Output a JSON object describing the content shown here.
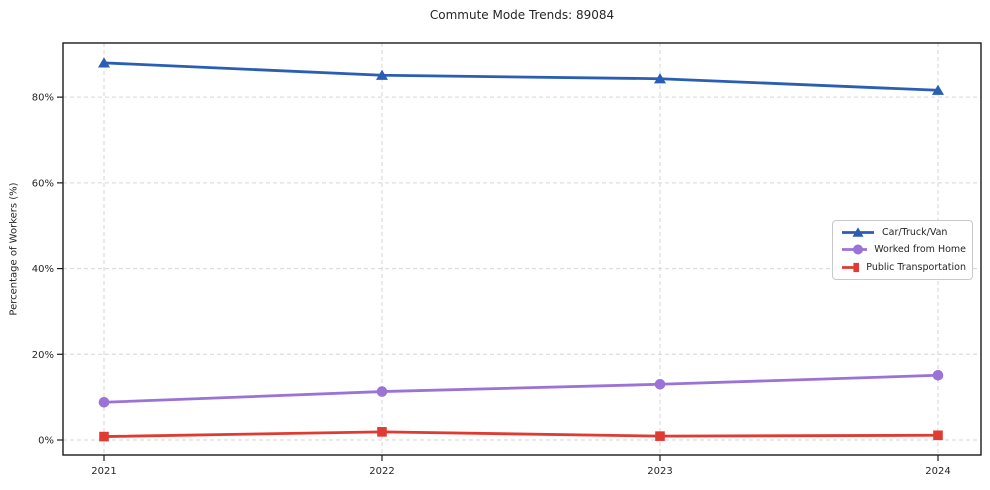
{
  "title": "Commute Mode Trends: 89084",
  "y_axis": {
    "label": "Percentage of Workers (%)",
    "tick_labels": [
      "0%",
      "20%",
      "40%",
      "60%",
      "80%"
    ],
    "tick_values": [
      0,
      20,
      40,
      60,
      80
    ]
  },
  "x_axis": {
    "tick_labels": [
      "2021",
      "2022",
      "2023",
      "2024"
    ]
  },
  "legend": {
    "entries": [
      "Car/Truck/Van",
      "Worked from Home",
      "Public Transportation"
    ]
  },
  "colors": {
    "car_truck_van": "#2a5db4",
    "worked_from_home": "#9b72d6",
    "public_transportation": "#df3b33",
    "gridline": "#d6d6d6",
    "axis_border": "#1b1b1b"
  },
  "chart_data": {
    "type": "line",
    "title": "Commute Mode Trends: 89084",
    "xlabel": "",
    "ylabel": "Percentage of Workers (%)",
    "categories": [
      "2021",
      "2022",
      "2023",
      "2024"
    ],
    "series": [
      {
        "name": "Car/Truck/Van",
        "marker": "triangle",
        "color": "#2a5db4",
        "values": [
          88.0,
          85.1,
          84.3,
          81.6
        ]
      },
      {
        "name": "Worked from Home",
        "marker": "circle",
        "color": "#9b72d6",
        "values": [
          8.8,
          11.3,
          13.0,
          15.1
        ]
      },
      {
        "name": "Public Transportation",
        "marker": "square",
        "color": "#df3b33",
        "values": [
          0.8,
          1.9,
          0.9,
          1.1
        ]
      }
    ],
    "ylim": [
      -3.5,
      92.6
    ],
    "y_tick_values": [
      0,
      20,
      40,
      60,
      80
    ],
    "y_tick_labels": [
      "0%",
      "20%",
      "40%",
      "60%",
      "80%"
    ],
    "grid": true,
    "grid_style": "dashed",
    "legend_position": "center-right"
  }
}
